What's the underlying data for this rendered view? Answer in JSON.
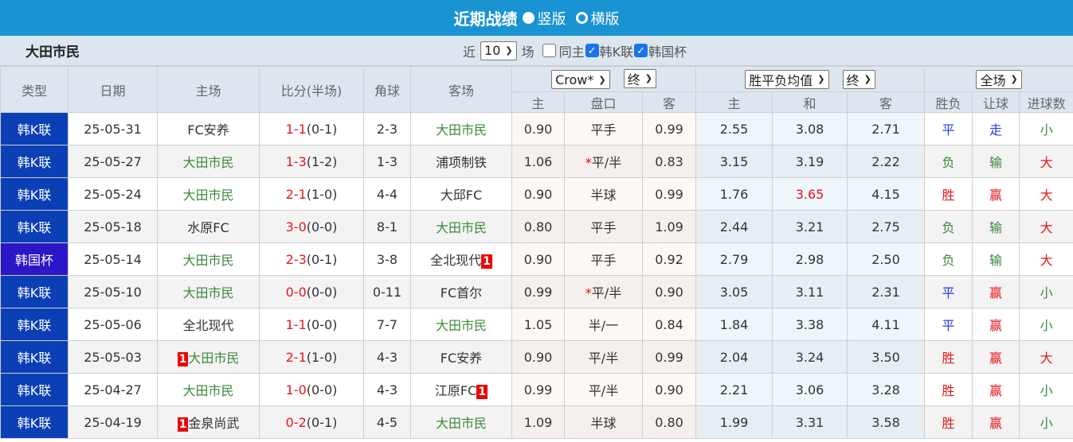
{
  "header": {
    "title": "近期战绩",
    "options": [
      {
        "label": "竖版",
        "selected": true
      },
      {
        "label": "横版",
        "selected": false
      }
    ]
  },
  "subheader": {
    "team": "大田市民",
    "recent_label": "近",
    "count": "10",
    "games_label": "场",
    "same_home_label": "同主",
    "same_home_checked": false,
    "filters": [
      {
        "label": "韩K联",
        "checked": true
      },
      {
        "label": "韩国杯",
        "checked": true
      }
    ]
  },
  "columns": {
    "type": "类型",
    "date": "日期",
    "home": "主场",
    "score": "比分(半场)",
    "corners": "角球",
    "away": "客场",
    "asian_company": "Crow*",
    "asian_phase": "终",
    "euro_type": "胜平负均值",
    "euro_phase": "终",
    "scope": "全场",
    "asian_sub": [
      "主",
      "盘口",
      "客"
    ],
    "euro_sub": [
      "主",
      "和",
      "客"
    ],
    "result_sub": [
      "胜负",
      "让球",
      "进球数"
    ]
  },
  "colors": {
    "header_bg": "#1a93d3",
    "league_bg": "#0b3fb5",
    "cup_bg": "#2b16c8",
    "focus_team": "#3c8a3c",
    "win": "#e5171d",
    "draw": "#2b3be6",
    "loss": "#3c8a3c"
  },
  "rows": [
    {
      "type": "韩K联",
      "date": "25-05-31",
      "home": "FC安养",
      "home_badge": "",
      "score": "1-1",
      "ht": "(0-1)",
      "corners": "2-3",
      "away": "大田市民",
      "away_badge": "",
      "ah": "0.90",
      "line": "平手",
      "star": false,
      "aa": "0.99",
      "eh": "2.55",
      "ed": "3.08",
      "ea": "2.71",
      "result": "平",
      "handicap": "走",
      "ou": "小"
    },
    {
      "type": "韩K联",
      "date": "25-05-27",
      "home": "大田市民",
      "home_badge": "",
      "score": "1-3",
      "ht": "(1-2)",
      "corners": "1-3",
      "away": "浦项制铁",
      "away_badge": "",
      "ah": "1.06",
      "line": "平/半",
      "star": true,
      "aa": "0.83",
      "eh": "3.15",
      "ed": "3.19",
      "ea": "2.22",
      "result": "负",
      "handicap": "输",
      "ou": "大"
    },
    {
      "type": "韩K联",
      "date": "25-05-24",
      "home": "大田市民",
      "home_badge": "",
      "score": "2-1",
      "ht": "(1-0)",
      "corners": "4-4",
      "away": "大邱FC",
      "away_badge": "",
      "ah": "0.90",
      "line": "半球",
      "star": false,
      "aa": "0.99",
      "eh": "1.76",
      "ed": "3.65",
      "ed_highlight": true,
      "ea": "4.15",
      "result": "胜",
      "handicap": "赢",
      "ou": "大"
    },
    {
      "type": "韩K联",
      "date": "25-05-18",
      "home": "水原FC",
      "home_badge": "",
      "score": "3-0",
      "ht": "(0-0)",
      "corners": "8-1",
      "away": "大田市民",
      "away_badge": "",
      "ah": "0.80",
      "line": "平手",
      "star": false,
      "aa": "1.09",
      "eh": "2.44",
      "ed": "3.21",
      "ea": "2.75",
      "result": "负",
      "handicap": "输",
      "ou": "大"
    },
    {
      "type": "韩国杯",
      "date": "25-05-14",
      "home": "大田市民",
      "home_badge": "",
      "score": "2-3",
      "ht": "(0-1)",
      "corners": "3-8",
      "away": "全北现代",
      "away_badge": "1",
      "ah": "0.90",
      "line": "平手",
      "star": false,
      "aa": "0.92",
      "eh": "2.79",
      "ed": "2.98",
      "ea": "2.50",
      "result": "负",
      "handicap": "输",
      "ou": "大"
    },
    {
      "type": "韩K联",
      "date": "25-05-10",
      "home": "大田市民",
      "home_badge": "",
      "score": "0-0",
      "ht": "(0-0)",
      "corners": "0-11",
      "away": "FC首尔",
      "away_badge": "",
      "ah": "0.99",
      "line": "平/半",
      "star": true,
      "aa": "0.90",
      "eh": "3.05",
      "ed": "3.11",
      "ea": "2.31",
      "result": "平",
      "handicap": "赢",
      "ou": "小"
    },
    {
      "type": "韩K联",
      "date": "25-05-06",
      "home": "全北现代",
      "home_badge": "",
      "score": "1-1",
      "ht": "(0-0)",
      "corners": "7-7",
      "away": "大田市民",
      "away_badge": "",
      "ah": "1.05",
      "line": "半/一",
      "star": false,
      "aa": "0.84",
      "eh": "1.84",
      "ed": "3.38",
      "ea": "4.11",
      "result": "平",
      "handicap": "赢",
      "ou": "小"
    },
    {
      "type": "韩K联",
      "date": "25-05-03",
      "home": "大田市民",
      "home_badge": "1",
      "score": "2-1",
      "ht": "(1-0)",
      "corners": "4-3",
      "away": "FC安养",
      "away_badge": "",
      "ah": "0.90",
      "line": "平/半",
      "star": false,
      "aa": "0.99",
      "eh": "2.04",
      "ed": "3.24",
      "ea": "3.50",
      "result": "胜",
      "handicap": "赢",
      "ou": "大"
    },
    {
      "type": "韩K联",
      "date": "25-04-27",
      "home": "大田市民",
      "home_badge": "",
      "score": "1-0",
      "ht": "(0-0)",
      "corners": "4-3",
      "away": "江原FC",
      "away_badge": "1",
      "ah": "0.99",
      "line": "平/半",
      "star": false,
      "aa": "0.90",
      "eh": "2.21",
      "ed": "3.06",
      "ea": "3.28",
      "result": "胜",
      "handicap": "赢",
      "ou": "小"
    },
    {
      "type": "韩K联",
      "date": "25-04-19",
      "home": "金泉尚武",
      "home_badge": "1",
      "score": "0-2",
      "ht": "(0-1)",
      "corners": "4-5",
      "away": "大田市民",
      "away_badge": "",
      "ah": "1.09",
      "line": "半球",
      "star": false,
      "aa": "0.80",
      "eh": "1.99",
      "ed": "3.31",
      "ea": "3.58",
      "result": "胜",
      "handicap": "赢",
      "ou": "小"
    }
  ]
}
